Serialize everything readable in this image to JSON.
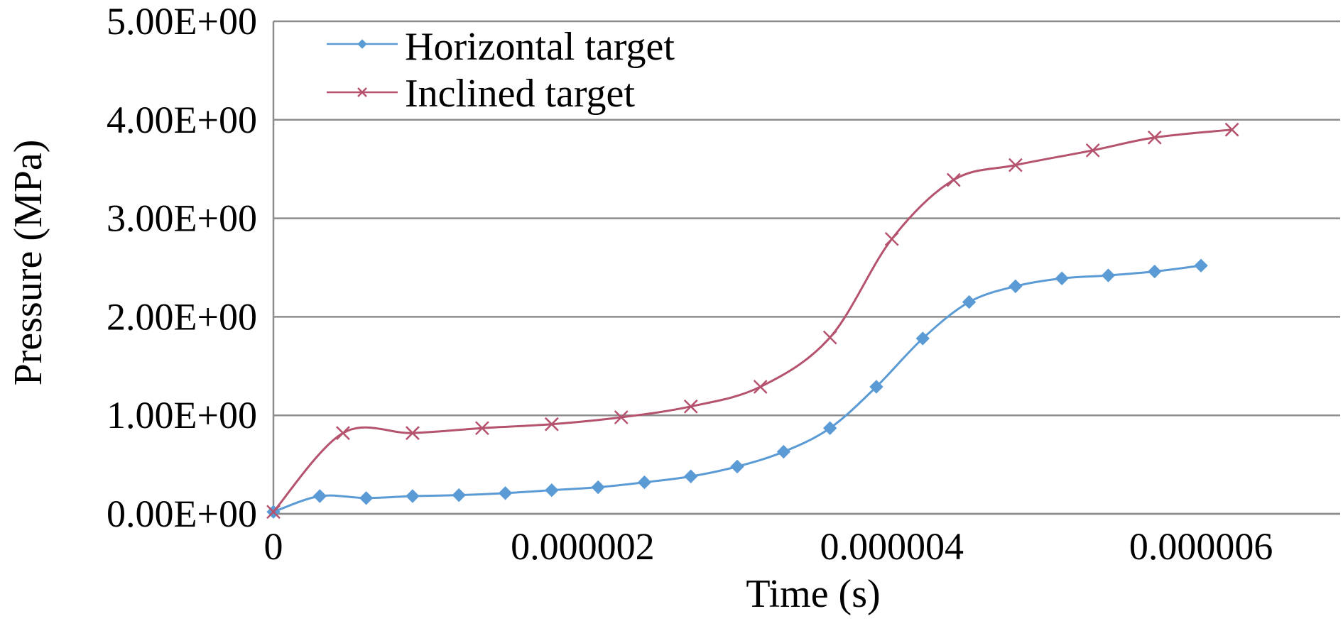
{
  "chart_data": {
    "type": "line",
    "xlabel": "Time (s)",
    "ylabel": "Pressure (MPa)",
    "xlim": [
      0,
      6.9e-06
    ],
    "ylim": [
      0,
      5
    ],
    "x_ticks": [
      {
        "value": 0,
        "label": "0"
      },
      {
        "value": 2e-06,
        "label": "0.000002"
      },
      {
        "value": 4e-06,
        "label": "0.000004"
      },
      {
        "value": 6e-06,
        "label": "0.000006"
      }
    ],
    "y_ticks": [
      {
        "value": 0,
        "label": "0.00E+00"
      },
      {
        "value": 1,
        "label": "1.00E+00"
      },
      {
        "value": 2,
        "label": "2.00E+00"
      },
      {
        "value": 3,
        "label": "3.00E+00"
      },
      {
        "value": 4,
        "label": "4.00E+00"
      },
      {
        "value": 5,
        "label": "5.00E+00"
      }
    ],
    "grid": "horizontal",
    "legend_position": "top-left",
    "series": [
      {
        "name": "Horizontal target",
        "color": "#5b9bd5",
        "marker": "diamond",
        "x": [
          0,
          3e-07,
          6e-07,
          9e-07,
          1.2e-06,
          1.5e-06,
          1.8e-06,
          2.1e-06,
          2.4e-06,
          2.7e-06,
          3e-06,
          3.3e-06,
          3.6e-06,
          3.9e-06,
          4.2e-06,
          4.5e-06,
          4.8e-06,
          5.1e-06,
          5.4e-06,
          5.7e-06,
          6e-06
        ],
        "values": [
          0.02,
          0.18,
          0.16,
          0.18,
          0.19,
          0.21,
          0.24,
          0.27,
          0.32,
          0.38,
          0.48,
          0.63,
          0.87,
          1.29,
          1.78,
          2.15,
          2.31,
          2.39,
          2.42,
          2.46,
          2.52
        ]
      },
      {
        "name": "Inclined target",
        "color": "#b5526d",
        "marker": "x",
        "x": [
          0,
          4.5e-07,
          9e-07,
          1.35e-06,
          1.8e-06,
          2.25e-06,
          2.7e-06,
          3.15e-06,
          3.6e-06,
          4e-06,
          4.4e-06,
          4.8e-06,
          5.3e-06,
          5.7e-06,
          6.2e-06
        ],
        "values": [
          0.02,
          0.82,
          0.82,
          0.87,
          0.91,
          0.98,
          1.09,
          1.29,
          1.79,
          2.79,
          3.39,
          3.54,
          3.69,
          3.82,
          3.9
        ]
      }
    ]
  }
}
